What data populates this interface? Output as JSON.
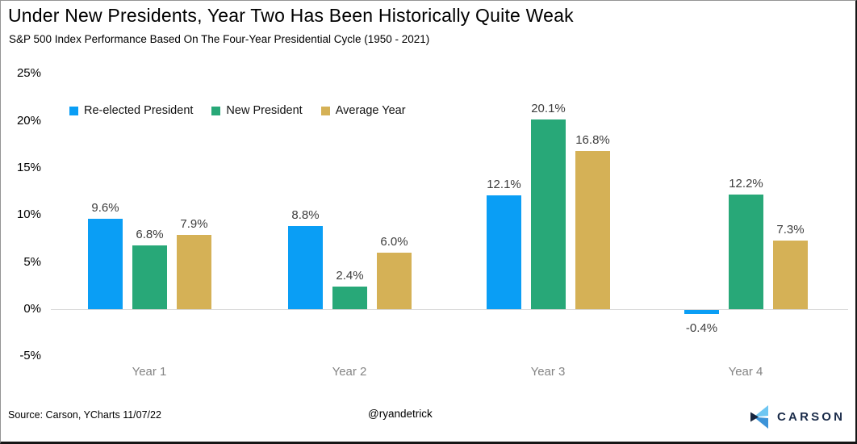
{
  "title": "Under New Presidents, Year Two Has Been Historically Quite Weak",
  "subtitle": "S&P 500 Index Performance Based On The Four-Year Presidential Cycle (1950 - 2021)",
  "chart_data": {
    "type": "bar",
    "title": "Under New Presidents, Year Two Has Been Historically Quite Weak",
    "subtitle": "S&P 500 Index Performance Based On The Four-Year Presidential Cycle (1950 - 2021)",
    "categories": [
      "Year 1",
      "Year 2",
      "Year 3",
      "Year 4"
    ],
    "series": [
      {
        "name": "Re-elected President",
        "color": "#0a9ef5",
        "values": [
          9.6,
          8.8,
          12.1,
          -0.4
        ]
      },
      {
        "name": "New President",
        "color": "#28a878",
        "values": [
          6.8,
          2.4,
          20.1,
          12.2
        ]
      },
      {
        "name": "Average Year",
        "color": "#d5b156",
        "values": [
          7.9,
          6.0,
          16.8,
          7.3
        ]
      }
    ],
    "point_label_suffix": "%",
    "y_ticks": [
      25,
      20,
      15,
      10,
      5,
      0,
      -5
    ],
    "y_tick_suffix": "%",
    "ylim": [
      -7.5,
      27
    ],
    "xlabel": "",
    "ylabel": "",
    "grid": "zero-baseline-only",
    "legend_position": "top-left"
  },
  "footer": {
    "source": "Source: Carson, YCharts 11/07/22",
    "handle": "@ryandetrick",
    "brand_name": "CARSON"
  },
  "colors": {
    "blue": "#0a9ef5",
    "green": "#28a878",
    "gold": "#d5b156",
    "navy": "#1a2b49",
    "logo_light_blue": "#6ec6f2",
    "logo_mid_blue": "#3c93d8",
    "logo_navy": "#16253f",
    "value_label": "#3d3d3d",
    "category_label": "#848484",
    "zero_line": "#d8d8d8"
  }
}
